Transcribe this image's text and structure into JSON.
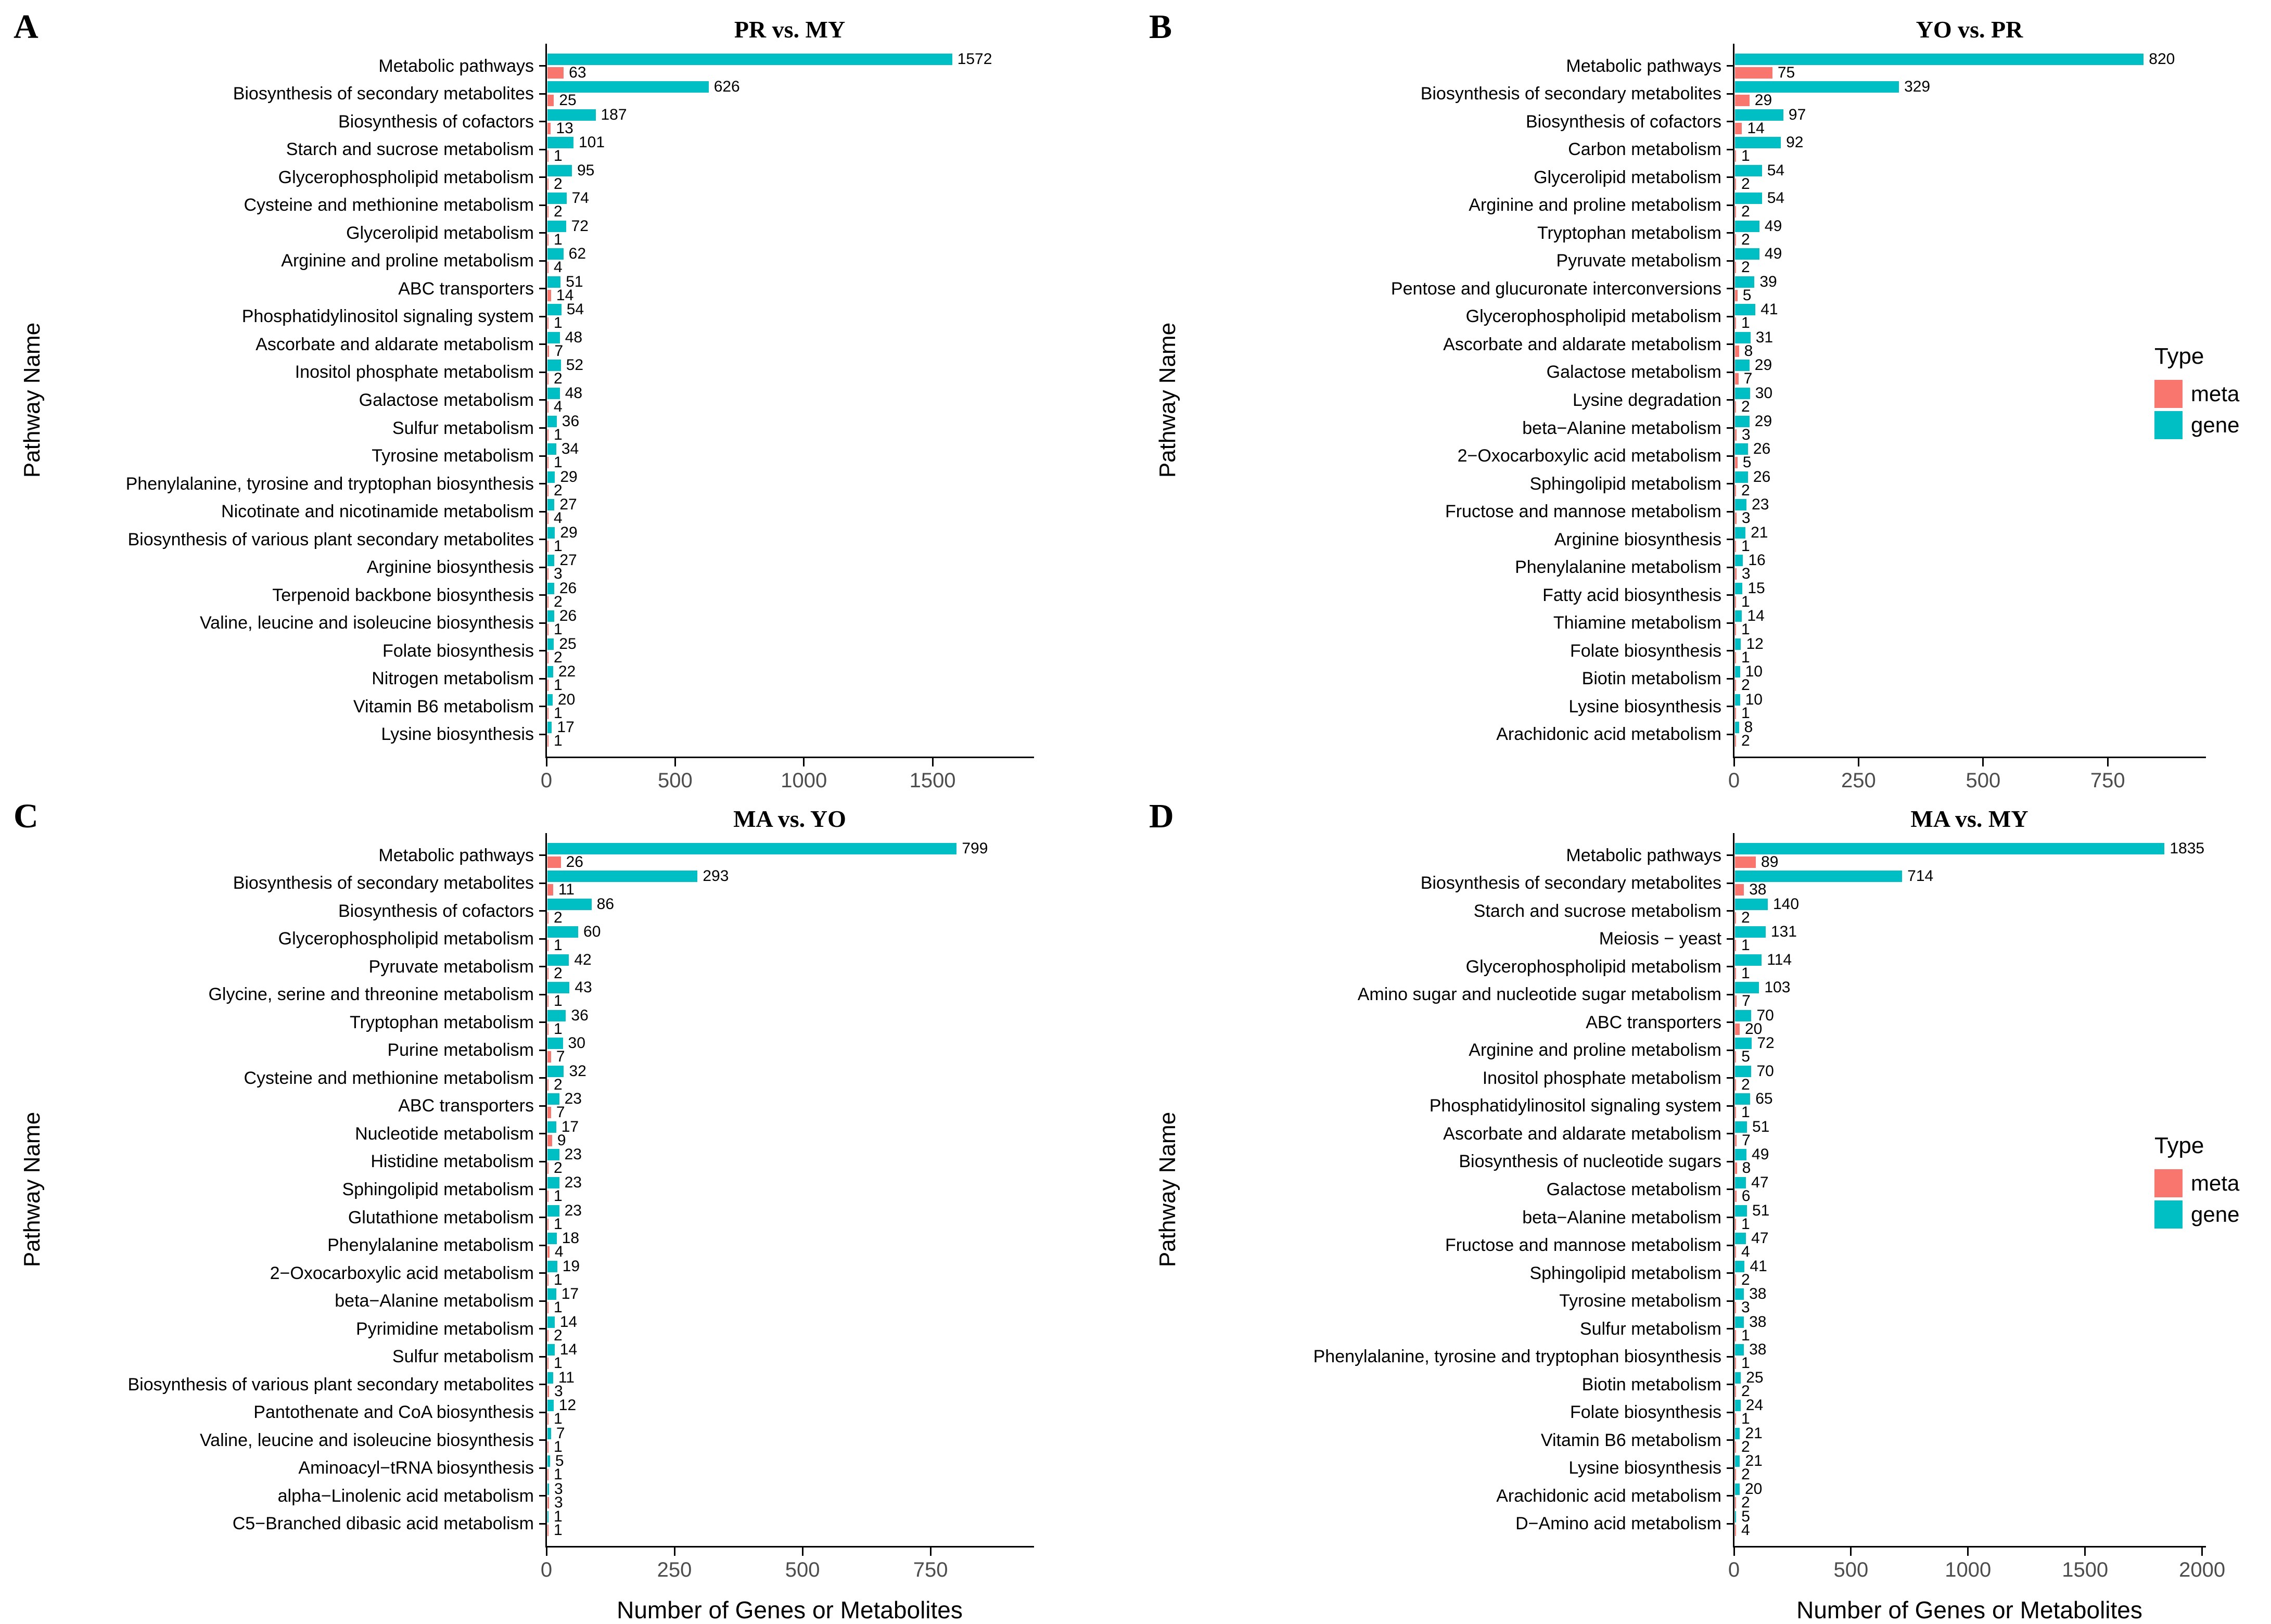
{
  "legend": {
    "title": "Type",
    "items": [
      {
        "label": "meta",
        "color": "#F8766D"
      },
      {
        "label": "gene",
        "color": "#00BFC4"
      }
    ]
  },
  "axis": {
    "x_label": "Number of Genes or Metabolites",
    "y_label": "Pathway Name"
  },
  "chart_data": [
    {
      "type": "bar",
      "panel_letter": "A",
      "title": "PR vs. MY",
      "orientation": "horizontal",
      "xlabel": "Number of Genes or Metabolites",
      "ylabel": "Pathway Name",
      "x_ticks": [
        0,
        500,
        1000,
        1500
      ],
      "xlim": [
        0,
        1890
      ],
      "legend_position": "right",
      "rows": [
        {
          "pathway": "Metabolic pathways",
          "gene": 1572,
          "meta": 63
        },
        {
          "pathway": "Biosynthesis of secondary metabolites",
          "gene": 626,
          "meta": 25
        },
        {
          "pathway": "Biosynthesis of cofactors",
          "gene": 187,
          "meta": 13
        },
        {
          "pathway": "Starch and sucrose metabolism",
          "gene": 101,
          "meta": 1
        },
        {
          "pathway": "Glycerophospholipid metabolism",
          "gene": 95,
          "meta": 2
        },
        {
          "pathway": "Cysteine and methionine metabolism",
          "gene": 74,
          "meta": 2
        },
        {
          "pathway": "Glycerolipid metabolism",
          "gene": 72,
          "meta": 1
        },
        {
          "pathway": "Arginine and proline metabolism",
          "gene": 62,
          "meta": 4
        },
        {
          "pathway": "ABC transporters",
          "gene": 51,
          "meta": 14
        },
        {
          "pathway": "Phosphatidylinositol signaling system",
          "gene": 54,
          "meta": 1
        },
        {
          "pathway": "Ascorbate and aldarate metabolism",
          "gene": 48,
          "meta": 7
        },
        {
          "pathway": "Inositol phosphate metabolism",
          "gene": 52,
          "meta": 2
        },
        {
          "pathway": "Galactose metabolism",
          "gene": 48,
          "meta": 4
        },
        {
          "pathway": "Sulfur metabolism",
          "gene": 36,
          "meta": 1
        },
        {
          "pathway": "Tyrosine metabolism",
          "gene": 34,
          "meta": 1
        },
        {
          "pathway": "Phenylalanine, tyrosine and tryptophan biosynthesis",
          "gene": 29,
          "meta": 2
        },
        {
          "pathway": "Nicotinate and nicotinamide metabolism",
          "gene": 27,
          "meta": 4
        },
        {
          "pathway": "Biosynthesis of various plant secondary metabolites",
          "gene": 29,
          "meta": 1
        },
        {
          "pathway": "Arginine biosynthesis",
          "gene": 27,
          "meta": 3
        },
        {
          "pathway": "Terpenoid backbone biosynthesis",
          "gene": 26,
          "meta": 2
        },
        {
          "pathway": "Valine, leucine and isoleucine biosynthesis",
          "gene": 26,
          "meta": 1
        },
        {
          "pathway": "Folate biosynthesis",
          "gene": 25,
          "meta": 2
        },
        {
          "pathway": "Nitrogen metabolism",
          "gene": 22,
          "meta": 1
        },
        {
          "pathway": "Vitamin B6 metabolism",
          "gene": 20,
          "meta": 1
        },
        {
          "pathway": "Lysine biosynthesis",
          "gene": 17,
          "meta": 1
        }
      ]
    },
    {
      "type": "bar",
      "panel_letter": "B",
      "title": "YO vs. PR",
      "orientation": "horizontal",
      "xlabel": "Number of Genes or Metabolites",
      "ylabel": "Pathway Name",
      "x_ticks": [
        0,
        250,
        500,
        750
      ],
      "xlim": [
        0,
        945
      ],
      "legend_position": "right",
      "rows": [
        {
          "pathway": "Metabolic pathways",
          "gene": 820,
          "meta": 75
        },
        {
          "pathway": "Biosynthesis of secondary metabolites",
          "gene": 329,
          "meta": 29
        },
        {
          "pathway": "Biosynthesis of cofactors",
          "gene": 97,
          "meta": 14
        },
        {
          "pathway": "Carbon metabolism",
          "gene": 92,
          "meta": 1
        },
        {
          "pathway": "Glycerolipid metabolism",
          "gene": 54,
          "meta": 2
        },
        {
          "pathway": "Arginine and proline metabolism",
          "gene": 54,
          "meta": 2
        },
        {
          "pathway": "Tryptophan metabolism",
          "gene": 49,
          "meta": 2
        },
        {
          "pathway": "Pyruvate metabolism",
          "gene": 49,
          "meta": 2
        },
        {
          "pathway": "Pentose and glucuronate interconversions",
          "gene": 39,
          "meta": 5
        },
        {
          "pathway": "Glycerophospholipid metabolism",
          "gene": 41,
          "meta": 1
        },
        {
          "pathway": "Ascorbate and aldarate metabolism",
          "gene": 31,
          "meta": 8
        },
        {
          "pathway": "Galactose metabolism",
          "gene": 29,
          "meta": 7
        },
        {
          "pathway": "Lysine degradation",
          "gene": 30,
          "meta": 2
        },
        {
          "pathway": "beta−Alanine metabolism",
          "gene": 29,
          "meta": 3
        },
        {
          "pathway": "2−Oxocarboxylic acid metabolism",
          "gene": 26,
          "meta": 5
        },
        {
          "pathway": "Sphingolipid metabolism",
          "gene": 26,
          "meta": 2
        },
        {
          "pathway": "Fructose and mannose metabolism",
          "gene": 23,
          "meta": 3
        },
        {
          "pathway": "Arginine biosynthesis",
          "gene": 21,
          "meta": 1
        },
        {
          "pathway": "Phenylalanine metabolism",
          "gene": 16,
          "meta": 3
        },
        {
          "pathway": "Fatty acid biosynthesis",
          "gene": 15,
          "meta": 1
        },
        {
          "pathway": "Thiamine metabolism",
          "gene": 14,
          "meta": 1
        },
        {
          "pathway": "Folate biosynthesis",
          "gene": 12,
          "meta": 1
        },
        {
          "pathway": "Biotin metabolism",
          "gene": 10,
          "meta": 2
        },
        {
          "pathway": "Lysine biosynthesis",
          "gene": 10,
          "meta": 1
        },
        {
          "pathway": "Arachidonic acid metabolism",
          "gene": 8,
          "meta": 2
        }
      ]
    },
    {
      "type": "bar",
      "panel_letter": "C",
      "title": "MA vs. YO",
      "orientation": "horizontal",
      "xlabel": "Number of Genes or Metabolites",
      "ylabel": "Pathway Name",
      "x_ticks": [
        0,
        250,
        500,
        750
      ],
      "xlim": [
        0,
        950
      ],
      "legend_position": "right",
      "rows": [
        {
          "pathway": "Metabolic pathways",
          "gene": 799,
          "meta": 26
        },
        {
          "pathway": "Biosynthesis of secondary metabolites",
          "gene": 293,
          "meta": 11
        },
        {
          "pathway": "Biosynthesis of cofactors",
          "gene": 86,
          "meta": 2
        },
        {
          "pathway": "Glycerophospholipid metabolism",
          "gene": 60,
          "meta": 1
        },
        {
          "pathway": "Pyruvate metabolism",
          "gene": 42,
          "meta": 2
        },
        {
          "pathway": "Glycine, serine and threonine metabolism",
          "gene": 43,
          "meta": 1
        },
        {
          "pathway": "Tryptophan metabolism",
          "gene": 36,
          "meta": 1
        },
        {
          "pathway": "Purine metabolism",
          "gene": 30,
          "meta": 7
        },
        {
          "pathway": "Cysteine and methionine metabolism",
          "gene": 32,
          "meta": 2
        },
        {
          "pathway": "ABC transporters",
          "gene": 23,
          "meta": 7
        },
        {
          "pathway": "Nucleotide metabolism",
          "gene": 17,
          "meta": 9
        },
        {
          "pathway": "Histidine metabolism",
          "gene": 23,
          "meta": 2
        },
        {
          "pathway": "Sphingolipid metabolism",
          "gene": 23,
          "meta": 1
        },
        {
          "pathway": "Glutathione metabolism",
          "gene": 23,
          "meta": 1
        },
        {
          "pathway": "Phenylalanine metabolism",
          "gene": 18,
          "meta": 4
        },
        {
          "pathway": "2−Oxocarboxylic acid metabolism",
          "gene": 19,
          "meta": 1
        },
        {
          "pathway": "beta−Alanine metabolism",
          "gene": 17,
          "meta": 1
        },
        {
          "pathway": "Pyrimidine metabolism",
          "gene": 14,
          "meta": 2
        },
        {
          "pathway": "Sulfur metabolism",
          "gene": 14,
          "meta": 1
        },
        {
          "pathway": "Biosynthesis of various plant secondary metabolites",
          "gene": 11,
          "meta": 3
        },
        {
          "pathway": "Pantothenate and CoA biosynthesis",
          "gene": 12,
          "meta": 1
        },
        {
          "pathway": "Valine, leucine and isoleucine biosynthesis",
          "gene": 7,
          "meta": 1
        },
        {
          "pathway": "Aminoacyl−tRNA biosynthesis",
          "gene": 5,
          "meta": 1
        },
        {
          "pathway": "alpha−Linolenic acid metabolism",
          "gene": 3,
          "meta": 3
        },
        {
          "pathway": "C5−Branched dibasic acid metabolism",
          "gene": 1,
          "meta": 1
        }
      ]
    },
    {
      "type": "bar",
      "panel_letter": "D",
      "title": "MA vs. MY",
      "orientation": "horizontal",
      "xlabel": "Number of Genes or Metabolites",
      "ylabel": "Pathway Name",
      "x_ticks": [
        0,
        500,
        1000,
        1500,
        2000
      ],
      "xlim": [
        0,
        2012
      ],
      "legend_position": "right",
      "rows": [
        {
          "pathway": "Metabolic pathways",
          "gene": 1835,
          "meta": 89
        },
        {
          "pathway": "Biosynthesis of secondary metabolites",
          "gene": 714,
          "meta": 38
        },
        {
          "pathway": "Starch and sucrose metabolism",
          "gene": 140,
          "meta": 2
        },
        {
          "pathway": "Meiosis − yeast",
          "gene": 131,
          "meta": 1
        },
        {
          "pathway": "Glycerophospholipid metabolism",
          "gene": 114,
          "meta": 1
        },
        {
          "pathway": "Amino sugar and nucleotide sugar metabolism",
          "gene": 103,
          "meta": 7
        },
        {
          "pathway": "ABC transporters",
          "gene": 70,
          "meta": 20
        },
        {
          "pathway": "Arginine and proline metabolism",
          "gene": 72,
          "meta": 5
        },
        {
          "pathway": "Inositol phosphate metabolism",
          "gene": 70,
          "meta": 2
        },
        {
          "pathway": "Phosphatidylinositol signaling system",
          "gene": 65,
          "meta": 1
        },
        {
          "pathway": "Ascorbate and aldarate metabolism",
          "gene": 51,
          "meta": 7
        },
        {
          "pathway": "Biosynthesis of nucleotide sugars",
          "gene": 49,
          "meta": 8
        },
        {
          "pathway": "Galactose metabolism",
          "gene": 47,
          "meta": 6
        },
        {
          "pathway": "beta−Alanine metabolism",
          "gene": 51,
          "meta": 1
        },
        {
          "pathway": "Fructose and mannose metabolism",
          "gene": 47,
          "meta": 4
        },
        {
          "pathway": "Sphingolipid metabolism",
          "gene": 41,
          "meta": 2
        },
        {
          "pathway": "Tyrosine metabolism",
          "gene": 38,
          "meta": 3
        },
        {
          "pathway": "Sulfur metabolism",
          "gene": 38,
          "meta": 1
        },
        {
          "pathway": "Phenylalanine, tyrosine and tryptophan biosynthesis",
          "gene": 38,
          "meta": 1
        },
        {
          "pathway": "Biotin metabolism",
          "gene": 25,
          "meta": 2
        },
        {
          "pathway": "Folate biosynthesis",
          "gene": 24,
          "meta": 1
        },
        {
          "pathway": "Vitamin B6 metabolism",
          "gene": 21,
          "meta": 2
        },
        {
          "pathway": "Lysine biosynthesis",
          "gene": 21,
          "meta": 2
        },
        {
          "pathway": "Arachidonic acid metabolism",
          "gene": 20,
          "meta": 2
        },
        {
          "pathway": "D−Amino acid metabolism",
          "gene": 5,
          "meta": 4
        }
      ]
    }
  ]
}
